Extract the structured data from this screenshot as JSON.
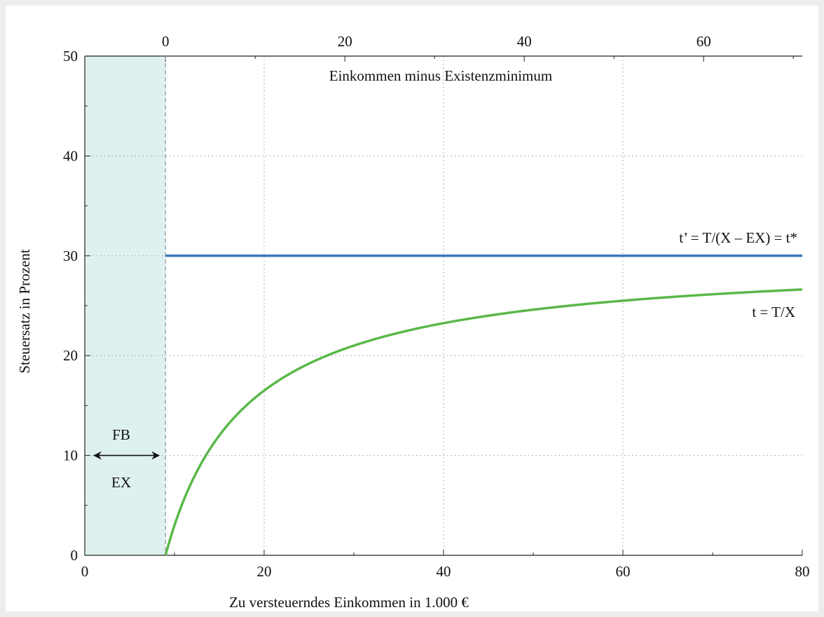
{
  "chart_data": {
    "type": "line",
    "xlabel": "Zu versteuerndes Einkommen in 1.000 €",
    "ylabel": "Steuersatz in Prozent",
    "x2label": "Einkommen minus Existenzminimum",
    "xlim": [
      0,
      80
    ],
    "ylim": [
      0,
      50
    ],
    "x2lim": [
      -9,
      71
    ],
    "xticks": [
      0,
      20,
      40,
      60,
      80
    ],
    "x2ticks": [
      0,
      20,
      40,
      60
    ],
    "yticks": [
      0,
      10,
      20,
      30,
      40,
      50
    ],
    "grid": true,
    "existenzminimum": 9,
    "marginal_rate": 30,
    "series": [
      {
        "name": "t’ = T/(X – EX) = t*",
        "color": "#3d7ab8",
        "x": [
          9,
          80
        ],
        "y": [
          30,
          30
        ]
      },
      {
        "name": "t = T/X",
        "color": "#5bb84a",
        "x": [
          9,
          10,
          12,
          15,
          20,
          25,
          30,
          40,
          50,
          60,
          70,
          80
        ],
        "y": [
          0,
          3.0,
          7.5,
          12.0,
          16.5,
          19.2,
          21.0,
          23.25,
          24.6,
          25.5,
          26.14,
          26.63
        ]
      }
    ],
    "annotations": {
      "series_label_marginal": "t’  = T/(X – EX) =  t*",
      "series_label_average": "t  =  T/X",
      "fb_label": "FB",
      "ex_label": "EX"
    },
    "colors": {
      "shaded_region": "#dff0f0",
      "dashed_line": "#999999"
    }
  }
}
